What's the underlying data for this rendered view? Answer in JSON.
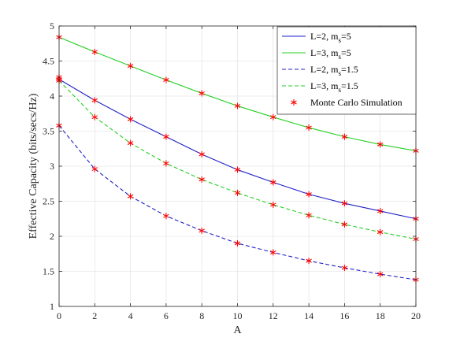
{
  "chart_data": {
    "type": "line",
    "xlabel": "A",
    "ylabel": "Effective Capacity (bits/secs/Hz)",
    "xlim": [
      0,
      20
    ],
    "ylim": [
      1,
      5
    ],
    "xticks": [
      "0",
      "2",
      "4",
      "6",
      "8",
      "10",
      "12",
      "14",
      "16",
      "18",
      "20"
    ],
    "yticks": [
      "1",
      "1.5",
      "2",
      "2.5",
      "3",
      "3.5",
      "4",
      "4.5",
      "5"
    ],
    "grid": true,
    "legend_position": "top-right",
    "x": [
      0,
      2,
      4,
      6,
      8,
      10,
      12,
      14,
      16,
      18,
      20
    ],
    "series": [
      {
        "name": "L=2, m",
        "name_sub": "s",
        "name_tail": "=5",
        "style": "solid",
        "color": "#2020c8",
        "values": [
          4.24,
          3.94,
          3.67,
          3.42,
          3.17,
          2.95,
          2.77,
          2.6,
          2.47,
          2.36,
          2.25
        ]
      },
      {
        "name": "L=3, m",
        "name_sub": "s",
        "name_tail": "=5",
        "style": "solid",
        "color": "#22d022",
        "values": [
          4.84,
          4.63,
          4.43,
          4.23,
          4.04,
          3.86,
          3.7,
          3.55,
          3.42,
          3.31,
          3.22
        ]
      },
      {
        "name": "L=2, m",
        "name_sub": "s",
        "name_tail": "=1.5",
        "style": "dashed",
        "color": "#2020c8",
        "values": [
          3.58,
          2.96,
          2.57,
          2.29,
          2.08,
          1.9,
          1.77,
          1.65,
          1.55,
          1.46,
          1.38
        ]
      },
      {
        "name": "L=3, m",
        "name_sub": "s",
        "name_tail": "=1.5",
        "style": "dashed",
        "color": "#22d022",
        "values": [
          4.22,
          3.7,
          3.33,
          3.04,
          2.81,
          2.62,
          2.45,
          2.3,
          2.17,
          2.06,
          1.96
        ]
      }
    ],
    "markers": {
      "name": "Monte Carlo Simulation",
      "color": "#ff0000",
      "x": [
        0,
        2,
        4,
        6,
        8,
        10,
        12,
        14,
        16,
        18,
        20
      ]
    },
    "extra_markers": [
      {
        "x": 0,
        "y": 4.27
      }
    ]
  }
}
